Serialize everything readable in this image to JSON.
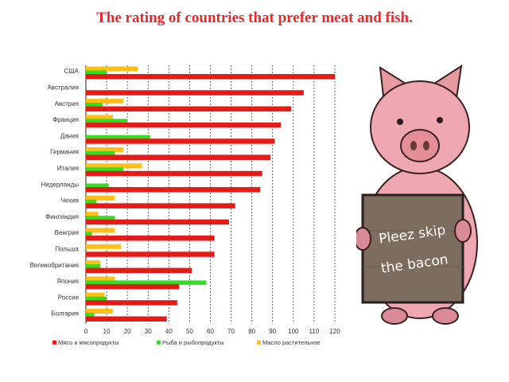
{
  "title": "The rating of countries that prefer meat and fish.",
  "colors": {
    "meat": "#e41b17",
    "fish": "#33dd22",
    "veg": "#ffbf14",
    "grid": "#444444"
  },
  "chart_data": {
    "type": "bar",
    "orientation": "horizontal",
    "categories": [
      "США",
      "Австралия",
      "Австрия",
      "Франция",
      "Дания",
      "Германия",
      "Италия",
      "Нидерланды",
      "Чехия",
      "Финляндия",
      "Венгрия",
      "Польша",
      "Великобритания",
      "Япония",
      "Россия",
      "Болгария"
    ],
    "series": [
      {
        "name": "Мясо и мясопродукты",
        "color": "#e41b17",
        "values": [
          120,
          105,
          99,
          94,
          91,
          89,
          85,
          84,
          72,
          69,
          62,
          62,
          51,
          45,
          44,
          39
        ]
      },
      {
        "name": "Рыба и рыбопродукты",
        "color": "#33dd22",
        "values": [
          10,
          0,
          8,
          20,
          31,
          14,
          18,
          11,
          5,
          14,
          3,
          0,
          7,
          58,
          10,
          4
        ]
      },
      {
        "name": "Масло растительное",
        "color": "#ffbf14",
        "values": [
          25,
          0,
          18,
          13,
          0,
          18,
          27,
          0,
          14,
          6,
          14,
          17,
          7,
          14,
          9,
          13
        ]
      }
    ],
    "xlim": [
      0,
      120
    ],
    "xticks": [
      "0",
      "10",
      "20",
      "30",
      "40",
      "50",
      "60",
      "70",
      "80",
      "90",
      "100",
      "110",
      "120"
    ],
    "grid": "vertical dashed",
    "legend_position": "bottom"
  },
  "illustration": {
    "description_icon": "pig-holding-sign",
    "sign_lines": [
      "Pleez skip",
      "the bacon"
    ]
  }
}
